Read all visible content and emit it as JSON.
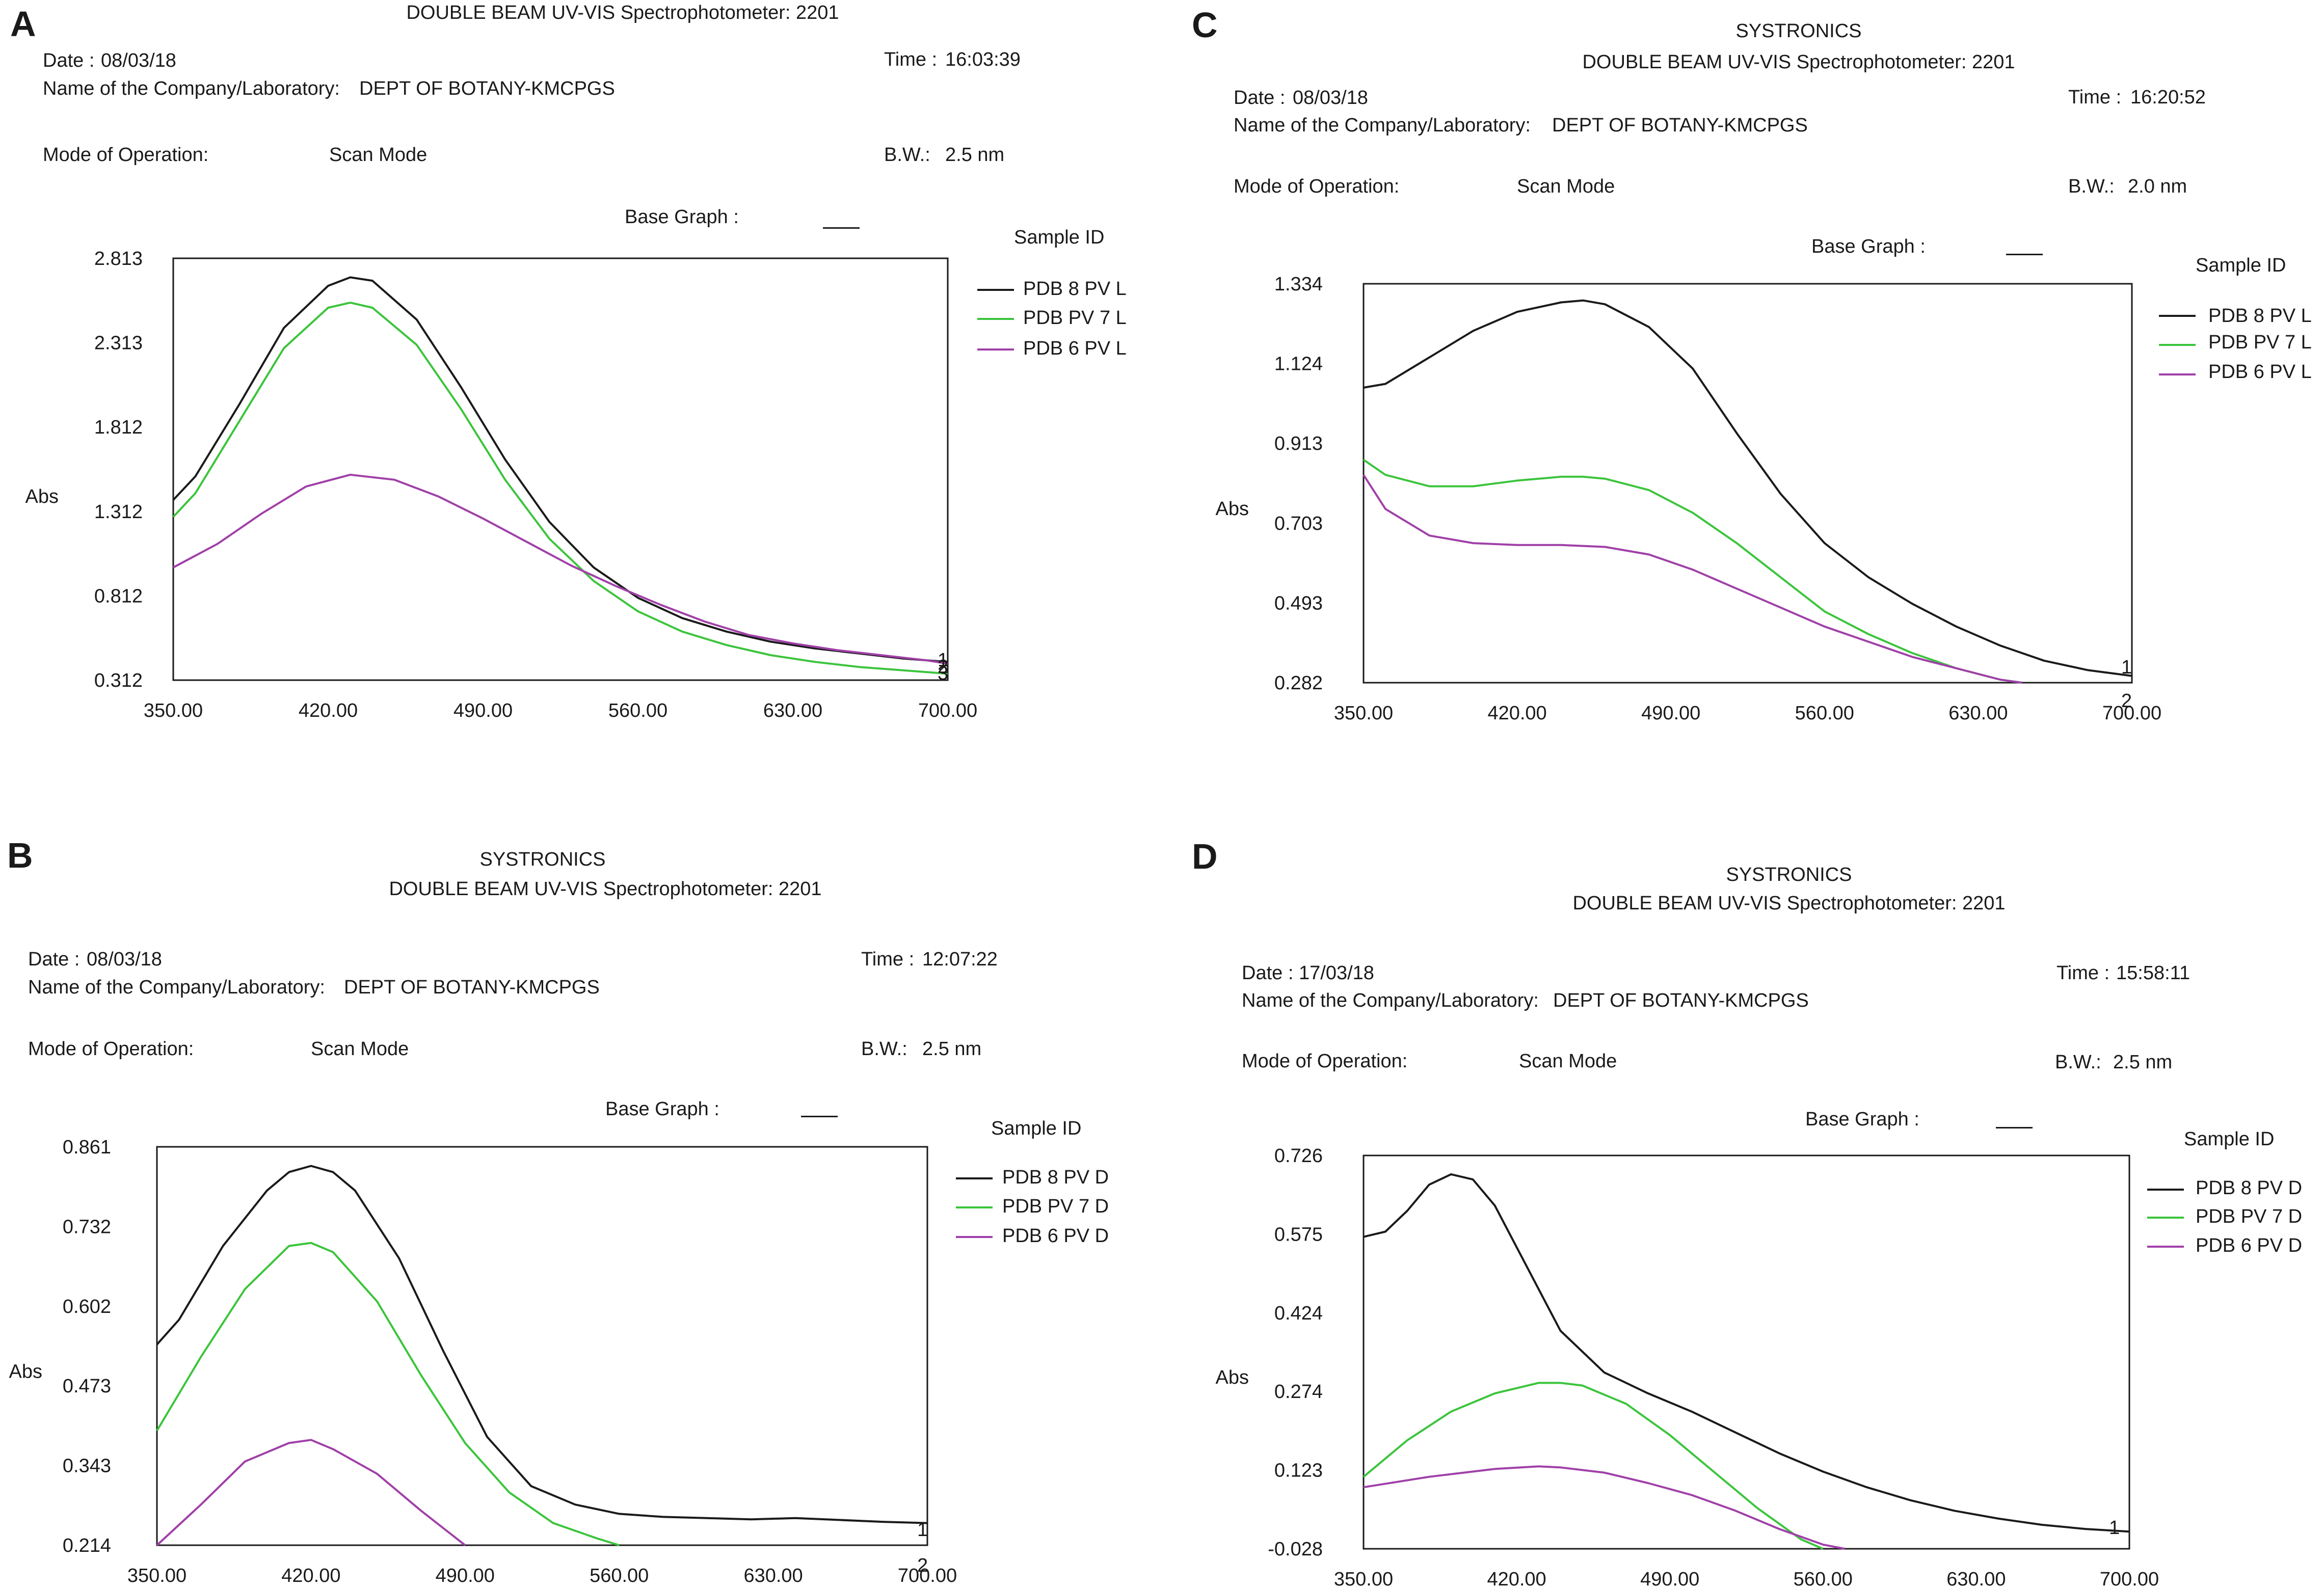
{
  "panels": [
    {
      "letter": "A",
      "company": "",
      "title": "DOUBLE BEAM UV-VIS Spectrophotometer: 2201",
      "date_label": "Date :",
      "date": "08/03/18",
      "time_label": "Time :",
      "time": "16:03:39",
      "lab_label": "Name of the Company/Laboratory:",
      "lab": "DEPT OF BOTANY-KMCPGS",
      "mode_label": "Mode of Operation:",
      "mode": "Scan Mode",
      "bw_label": "B.W.:",
      "bw": "2.5 nm",
      "base_graph_label": "Base Graph :",
      "sample_id_label": "Sample ID"
    },
    {
      "letter": "B",
      "company": "SYSTRONICS",
      "title": "DOUBLE BEAM UV-VIS Spectrophotometer: 2201",
      "date_label": "Date :",
      "date": "08/03/18",
      "time_label": "Time :",
      "time": "12:07:22",
      "lab_label": "Name of the Company/Laboratory:",
      "lab": "DEPT OF BOTANY-KMCPGS",
      "mode_label": "Mode of Operation:",
      "mode": "Scan Mode",
      "bw_label": "B.W.:",
      "bw": "2.5 nm",
      "base_graph_label": "Base Graph :",
      "sample_id_label": "Sample ID"
    },
    {
      "letter": "C",
      "company": "SYSTRONICS",
      "title": "DOUBLE BEAM UV-VIS Spectrophotometer: 2201",
      "date_label": "Date :",
      "date": "08/03/18",
      "time_label": "Time :",
      "time": "16:20:52",
      "lab_label": "Name of the Company/Laboratory:",
      "lab": "DEPT OF BOTANY-KMCPGS",
      "mode_label": "Mode of Operation:",
      "mode": "Scan Mode",
      "bw_label": "B.W.:",
      "bw": "2.0 nm",
      "base_graph_label": "Base Graph :",
      "sample_id_label": "Sample ID"
    },
    {
      "letter": "D",
      "company": "SYSTRONICS",
      "title": "DOUBLE BEAM UV-VIS Spectrophotometer: 2201",
      "date_label": "Date :",
      "date": "17/03/18",
      "time_label": "Time :",
      "time": "15:58:11",
      "lab_label": "Name of the Company/Laboratory:",
      "lab": "DEPT OF BOTANY-KMCPGS",
      "mode_label": "Mode of Operation:",
      "mode": "Scan Mode",
      "bw_label": "B.W.:",
      "bw": "2.5 nm",
      "base_graph_label": "Base Graph :",
      "sample_id_label": "Sample ID"
    }
  ],
  "chart_data": [
    {
      "panel": "A",
      "type": "line",
      "ylabel": "Abs",
      "x_ticks": [
        "350.00",
        "420.00",
        "490.00",
        "560.00",
        "630.00",
        "700.00"
      ],
      "y_ticks": [
        "2.813",
        "2.313",
        "1.812",
        "1.312",
        "0.812",
        "0.312"
      ],
      "xlim": [
        350,
        700
      ],
      "ylim": [
        0.312,
        2.813
      ],
      "end_markers": [
        "1",
        "2",
        "3"
      ],
      "series": [
        {
          "name": "PDB 8 PV L",
          "color": "#1a1a1a",
          "x": [
            350,
            360,
            380,
            400,
            420,
            430,
            440,
            460,
            480,
            500,
            520,
            540,
            560,
            580,
            600,
            620,
            640,
            660,
            680,
            700
          ],
          "y": [
            1.38,
            1.52,
            1.95,
            2.4,
            2.65,
            2.7,
            2.68,
            2.45,
            2.05,
            1.62,
            1.25,
            0.98,
            0.8,
            0.68,
            0.6,
            0.54,
            0.5,
            0.47,
            0.44,
            0.42
          ]
        },
        {
          "name": "PDB PV 7 L",
          "color": "#3cc43c",
          "x": [
            350,
            360,
            380,
            400,
            420,
            430,
            440,
            460,
            480,
            500,
            520,
            540,
            560,
            580,
            600,
            620,
            640,
            660,
            680,
            700
          ],
          "y": [
            1.28,
            1.42,
            1.85,
            2.28,
            2.52,
            2.55,
            2.52,
            2.3,
            1.92,
            1.5,
            1.15,
            0.9,
            0.72,
            0.6,
            0.52,
            0.46,
            0.42,
            0.39,
            0.37,
            0.35
          ]
        },
        {
          "name": "PDB 6 PV L",
          "color": "#a040a8",
          "x": [
            350,
            370,
            390,
            410,
            430,
            450,
            470,
            490,
            510,
            530,
            550,
            570,
            590,
            610,
            630,
            650,
            670,
            690,
            700
          ],
          "y": [
            0.98,
            1.12,
            1.3,
            1.46,
            1.53,
            1.5,
            1.4,
            1.27,
            1.13,
            0.99,
            0.87,
            0.76,
            0.66,
            0.58,
            0.53,
            0.49,
            0.46,
            0.43,
            0.41
          ]
        }
      ]
    },
    {
      "panel": "B",
      "type": "line",
      "ylabel": "Abs",
      "x_ticks": [
        "350.00",
        "420.00",
        "490.00",
        "560.00",
        "630.00",
        "700.00"
      ],
      "y_ticks": [
        "0.861",
        "0.732",
        "0.602",
        "0.473",
        "0.343",
        "0.214"
      ],
      "xlim": [
        350,
        700
      ],
      "ylim": [
        0.214,
        0.861
      ],
      "end_markers": [
        "1",
        "2"
      ],
      "series": [
        {
          "name": "PDB 8 PV D",
          "color": "#1a1a1a",
          "x": [
            350,
            360,
            380,
            400,
            410,
            420,
            430,
            440,
            460,
            480,
            500,
            520,
            540,
            560,
            580,
            600,
            620,
            640,
            660,
            680,
            700
          ],
          "y": [
            0.54,
            0.58,
            0.7,
            0.79,
            0.82,
            0.83,
            0.82,
            0.79,
            0.68,
            0.53,
            0.39,
            0.31,
            0.28,
            0.265,
            0.26,
            0.258,
            0.256,
            0.258,
            0.255,
            0.252,
            0.25
          ]
        },
        {
          "name": "PDB PV 7 D",
          "color": "#3cc43c",
          "x": [
            350,
            370,
            390,
            410,
            420,
            430,
            450,
            470,
            490,
            510,
            530,
            550,
            560
          ],
          "y": [
            0.4,
            0.52,
            0.63,
            0.7,
            0.705,
            0.69,
            0.61,
            0.49,
            0.38,
            0.3,
            0.25,
            0.225,
            0.214
          ]
        },
        {
          "name": "PDB 6 PV D",
          "color": "#a040a8",
          "x": [
            350,
            370,
            390,
            410,
            420,
            430,
            450,
            470,
            490
          ],
          "y": [
            0.214,
            0.28,
            0.35,
            0.38,
            0.385,
            0.37,
            0.33,
            0.27,
            0.214
          ]
        }
      ]
    },
    {
      "panel": "C",
      "type": "line",
      "ylabel": "Abs",
      "x_ticks": [
        "350.00",
        "420.00",
        "490.00",
        "560.00",
        "630.00",
        "700.00"
      ],
      "y_ticks": [
        "1.334",
        "1.124",
        "0.913",
        "0.703",
        "0.493",
        "0.282"
      ],
      "xlim": [
        350,
        700
      ],
      "ylim": [
        0.282,
        1.334
      ],
      "end_markers": [
        "1",
        "2"
      ],
      "series": [
        {
          "name": "PDB 8 PV L",
          "color": "#1a1a1a",
          "x": [
            350,
            360,
            380,
            400,
            420,
            440,
            450,
            460,
            480,
            500,
            520,
            540,
            560,
            580,
            600,
            620,
            640,
            660,
            680,
            700
          ],
          "y": [
            1.06,
            1.07,
            1.14,
            1.21,
            1.26,
            1.285,
            1.29,
            1.28,
            1.22,
            1.11,
            0.94,
            0.78,
            0.65,
            0.56,
            0.49,
            0.43,
            0.38,
            0.34,
            0.315,
            0.3
          ]
        },
        {
          "name": "PDB PV 7 L",
          "color": "#3cc43c",
          "x": [
            350,
            360,
            380,
            400,
            420,
            440,
            450,
            460,
            480,
            500,
            520,
            540,
            560,
            580,
            600,
            620,
            640,
            650
          ],
          "y": [
            0.87,
            0.83,
            0.8,
            0.8,
            0.815,
            0.825,
            0.825,
            0.82,
            0.79,
            0.73,
            0.65,
            0.56,
            0.47,
            0.41,
            0.36,
            0.32,
            0.29,
            0.282
          ]
        },
        {
          "name": "PDB 6 PV L",
          "color": "#a040a8",
          "x": [
            350,
            360,
            380,
            400,
            420,
            440,
            460,
            480,
            500,
            520,
            540,
            560,
            580,
            600,
            620,
            640,
            650
          ],
          "y": [
            0.83,
            0.74,
            0.67,
            0.65,
            0.645,
            0.645,
            0.64,
            0.62,
            0.58,
            0.53,
            0.48,
            0.43,
            0.39,
            0.35,
            0.32,
            0.29,
            0.282
          ]
        }
      ]
    },
    {
      "panel": "D",
      "type": "line",
      "ylabel": "Abs",
      "x_ticks": [
        "350.00",
        "420.00",
        "490.00",
        "560.00",
        "630.00",
        "700.00"
      ],
      "y_ticks": [
        "0.726",
        "0.575",
        "0.424",
        "0.274",
        "0.123",
        "-0.028"
      ],
      "xlim": [
        350,
        700
      ],
      "ylim": [
        -0.028,
        0.726
      ],
      "end_markers": [
        "1"
      ],
      "series": [
        {
          "name": "PDB 8 PV D",
          "color": "#1a1a1a",
          "x": [
            350,
            360,
            370,
            380,
            390,
            400,
            410,
            420,
            440,
            460,
            480,
            500,
            520,
            540,
            560,
            580,
            600,
            620,
            640,
            660,
            680,
            700
          ],
          "y": [
            0.57,
            0.58,
            0.62,
            0.67,
            0.69,
            0.68,
            0.63,
            0.55,
            0.39,
            0.31,
            0.27,
            0.235,
            0.195,
            0.155,
            0.12,
            0.09,
            0.065,
            0.045,
            0.03,
            0.018,
            0.01,
            0.005
          ]
        },
        {
          "name": "PDB PV 7 D",
          "color": "#3cc43c",
          "x": [
            350,
            370,
            390,
            410,
            430,
            440,
            450,
            470,
            490,
            510,
            530,
            550,
            560
          ],
          "y": [
            0.11,
            0.18,
            0.235,
            0.27,
            0.29,
            0.29,
            0.285,
            0.25,
            0.19,
            0.12,
            0.05,
            -0.01,
            -0.028
          ]
        },
        {
          "name": "PDB 6 PV D",
          "color": "#a040a8",
          "x": [
            350,
            380,
            410,
            430,
            440,
            460,
            480,
            500,
            520,
            540,
            560,
            570
          ],
          "y": [
            0.09,
            0.11,
            0.125,
            0.13,
            0.128,
            0.118,
            0.098,
            0.075,
            0.045,
            0.01,
            -0.02,
            -0.028
          ]
        }
      ]
    }
  ]
}
